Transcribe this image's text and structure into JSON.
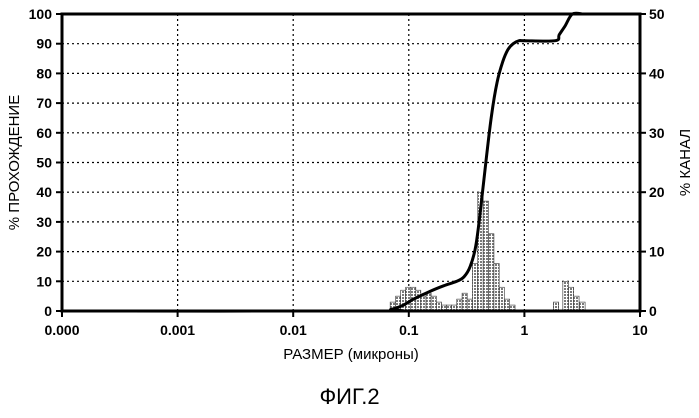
{
  "chart_data": {
    "type": "bar",
    "figure_caption": "ФИГ.2",
    "xlabel": "РАЗМЕР (микроны)",
    "ylabel_left": "% ПРОХОЖДЕНИЕ",
    "ylabel_right": "% КАНАЛ",
    "x_scale": "log",
    "x_ticks": [
      "0.000",
      "0.001",
      "0.01",
      "0.1",
      "1",
      "10"
    ],
    "y_left_ticks": [
      "0",
      "10",
      "20",
      "30",
      "40",
      "50",
      "60",
      "70",
      "80",
      "90",
      "100"
    ],
    "y_right_ticks": [
      "0",
      "10",
      "20",
      "30",
      "40",
      "50"
    ],
    "ylim_left": [
      0,
      100
    ],
    "ylim_right": [
      0,
      50
    ],
    "grid": true,
    "histogram_series": {
      "axis": "right",
      "pattern": "crosshatch",
      "bins": [
        {
          "x0": 0.069,
          "x1": 0.077,
          "value": 1.5
        },
        {
          "x0": 0.077,
          "x1": 0.085,
          "value": 2.5
        },
        {
          "x0": 0.085,
          "x1": 0.094,
          "value": 3.5
        },
        {
          "x0": 0.094,
          "x1": 0.104,
          "value": 4.0
        },
        {
          "x0": 0.104,
          "x1": 0.115,
          "value": 4.0
        },
        {
          "x0": 0.115,
          "x1": 0.127,
          "value": 3.5
        },
        {
          "x0": 0.127,
          "x1": 0.141,
          "value": 2.5
        },
        {
          "x0": 0.141,
          "x1": 0.156,
          "value": 3.0
        },
        {
          "x0": 0.156,
          "x1": 0.173,
          "value": 2.5
        },
        {
          "x0": 0.173,
          "x1": 0.192,
          "value": 1.5
        },
        {
          "x0": 0.192,
          "x1": 0.212,
          "value": 1.0
        },
        {
          "x0": 0.212,
          "x1": 0.235,
          "value": 1.0
        },
        {
          "x0": 0.235,
          "x1": 0.26,
          "value": 1.0
        },
        {
          "x0": 0.26,
          "x1": 0.289,
          "value": 2.0
        },
        {
          "x0": 0.289,
          "x1": 0.32,
          "value": 3.0
        },
        {
          "x0": 0.32,
          "x1": 0.355,
          "value": 2.0
        },
        {
          "x0": 0.355,
          "x1": 0.395,
          "value": 8.0
        },
        {
          "x0": 0.395,
          "x1": 0.44,
          "value": 20.0
        },
        {
          "x0": 0.44,
          "x1": 0.49,
          "value": 18.5
        },
        {
          "x0": 0.49,
          "x1": 0.545,
          "value": 13.0
        },
        {
          "x0": 0.545,
          "x1": 0.605,
          "value": 8.0
        },
        {
          "x0": 0.605,
          "x1": 0.67,
          "value": 4.0
        },
        {
          "x0": 0.67,
          "x1": 0.745,
          "value": 2.0
        },
        {
          "x0": 0.745,
          "x1": 0.83,
          "value": 1.0
        },
        {
          "x0": 1.78,
          "x1": 1.98,
          "value": 1.5
        },
        {
          "x0": 2.15,
          "x1": 2.4,
          "value": 5.0
        },
        {
          "x0": 2.4,
          "x1": 2.67,
          "value": 4.0
        },
        {
          "x0": 2.67,
          "x1": 2.97,
          "value": 2.5
        },
        {
          "x0": 3.0,
          "x1": 3.35,
          "value": 1.5
        }
      ]
    },
    "cumulative_series": {
      "axis": "left",
      "points": [
        [
          0.0001,
          0
        ],
        [
          0.05,
          0
        ],
        [
          0.07,
          0.5
        ],
        [
          0.09,
          2
        ],
        [
          0.11,
          4
        ],
        [
          0.15,
          6.5
        ],
        [
          0.2,
          8.5
        ],
        [
          0.26,
          10
        ],
        [
          0.3,
          11.5
        ],
        [
          0.34,
          15
        ],
        [
          0.38,
          22
        ],
        [
          0.42,
          35
        ],
        [
          0.47,
          52
        ],
        [
          0.52,
          66
        ],
        [
          0.58,
          77
        ],
        [
          0.65,
          84
        ],
        [
          0.72,
          88
        ],
        [
          0.8,
          90
        ],
        [
          0.9,
          91
        ],
        [
          1.0,
          91
        ],
        [
          1.85,
          91
        ],
        [
          2.0,
          93
        ],
        [
          2.25,
          96
        ],
        [
          2.6,
          100
        ],
        [
          3.2,
          100
        ]
      ]
    }
  }
}
